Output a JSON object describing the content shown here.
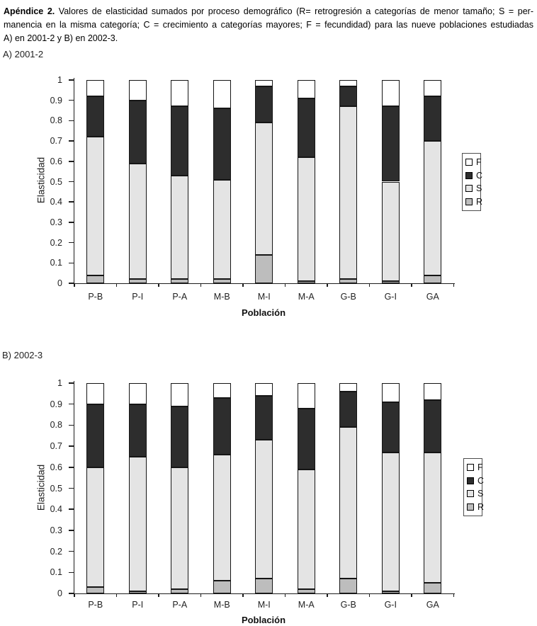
{
  "caption": {
    "label": "Apéndice 2.",
    "line1_rest": " Valores de elasticidad sumados por proceso demográfico (R= retrogresión a categorías de menor tamaño; S = per-",
    "line2": "manencia en la misma categoría; C = crecimiento a categorías mayores; F = fecundidad) para las nueve poblaciones estudiadas",
    "line3": "A) en 2001-2 y B) en 2002-3."
  },
  "colors": {
    "R": "#bdbdbd",
    "S": "#e4e4e4",
    "C": "#2d2d2d",
    "F": "#ffffff",
    "axis": "#1d1d1d"
  },
  "chart_data": [
    {
      "type": "bar",
      "stacked": true,
      "title": "A) 2001-2",
      "categories": [
        "P-B",
        "P-I",
        "P-A",
        "M-B",
        "M-I",
        "M-A",
        "G-B",
        "G-I",
        "GA"
      ],
      "series": [
        {
          "name": "R",
          "color": "#bdbdbd",
          "pattern": "solid",
          "values": [
            0.04,
            0.02,
            0.02,
            0.02,
            0.14,
            0.01,
            0.02,
            0.01,
            0.04
          ]
        },
        {
          "name": "S",
          "color": "#e4e4e4",
          "pattern": "diagonal-hatch",
          "values": [
            0.68,
            0.57,
            0.51,
            0.49,
            0.65,
            0.61,
            0.85,
            0.49,
            0.66
          ]
        },
        {
          "name": "C",
          "color": "#2d2d2d",
          "pattern": "solid",
          "values": [
            0.2,
            0.31,
            0.34,
            0.35,
            0.18,
            0.29,
            0.1,
            0.37,
            0.22
          ]
        },
        {
          "name": "F",
          "color": "#ffffff",
          "pattern": "solid",
          "values": [
            0.08,
            0.1,
            0.13,
            0.14,
            0.03,
            0.09,
            0.03,
            0.13,
            0.08
          ]
        }
      ],
      "xlabel": "Población",
      "ylabel": "Elasticidad",
      "ylim": [
        0,
        1
      ],
      "ytick_step": 0.1,
      "grid": false,
      "legend": {
        "position": "right",
        "entries": [
          "F",
          "C",
          "S",
          "R"
        ]
      }
    },
    {
      "type": "bar",
      "stacked": true,
      "title": "B) 2002-3",
      "categories": [
        "P-B",
        "P-I",
        "P-A",
        "M-B",
        "M-I",
        "M-A",
        "G-B",
        "G-I",
        "GA"
      ],
      "series": [
        {
          "name": "R",
          "color": "#bdbdbd",
          "pattern": "solid",
          "values": [
            0.03,
            0.01,
            0.02,
            0.06,
            0.07,
            0.02,
            0.07,
            0.01,
            0.05
          ]
        },
        {
          "name": "S",
          "color": "#e4e4e4",
          "pattern": "diagonal-hatch",
          "values": [
            0.57,
            0.64,
            0.58,
            0.6,
            0.66,
            0.57,
            0.72,
            0.66,
            0.62
          ]
        },
        {
          "name": "C",
          "color": "#2d2d2d",
          "pattern": "solid",
          "values": [
            0.3,
            0.25,
            0.29,
            0.27,
            0.21,
            0.29,
            0.17,
            0.24,
            0.25
          ]
        },
        {
          "name": "F",
          "color": "#ffffff",
          "pattern": "solid",
          "values": [
            0.1,
            0.1,
            0.11,
            0.07,
            0.06,
            0.12,
            0.04,
            0.09,
            0.08
          ]
        }
      ],
      "xlabel": "Población",
      "ylabel": "Elasticidad",
      "ylim": [
        0,
        1
      ],
      "ytick_step": 0.1,
      "grid": false,
      "legend": {
        "position": "right",
        "entries": [
          "F",
          "C",
          "S",
          "R"
        ]
      }
    }
  ]
}
